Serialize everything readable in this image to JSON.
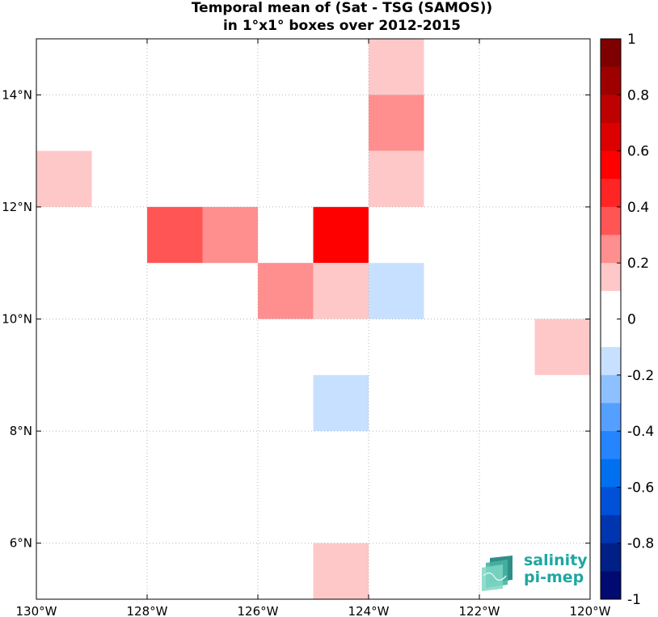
{
  "chart_data": {
    "type": "heatmap",
    "title": "Temporal mean of (Sat - TSG (SAMOS))",
    "subtitle": "in 1°x1° boxes over 2012-2015",
    "x_ticks": [
      {
        "value": -130,
        "label": "130°W"
      },
      {
        "value": -128,
        "label": "128°W"
      },
      {
        "value": -126,
        "label": "126°W"
      },
      {
        "value": -124,
        "label": "124°W"
      },
      {
        "value": -122,
        "label": "122°W"
      },
      {
        "value": -120,
        "label": "120°W"
      }
    ],
    "y_ticks": [
      {
        "value": 6,
        "label": "6°N"
      },
      {
        "value": 8,
        "label": "8°N"
      },
      {
        "value": 10,
        "label": "10°N"
      },
      {
        "value": 12,
        "label": "12°N"
      },
      {
        "value": 14,
        "label": "14°N"
      }
    ],
    "xlim": [
      -130,
      -120
    ],
    "ylim": [
      5,
      15
    ],
    "grid": true,
    "grid_style": "dotted",
    "colorbar": {
      "range": [
        -1,
        1
      ],
      "levels": 20,
      "ticks": [
        {
          "value": 1,
          "label": "1"
        },
        {
          "value": 0.8,
          "label": "0.8"
        },
        {
          "value": 0.6,
          "label": "0.6"
        },
        {
          "value": 0.4,
          "label": "0.4"
        },
        {
          "value": 0.2,
          "label": "0.2"
        },
        {
          "value": 0,
          "label": "0"
        },
        {
          "value": -0.2,
          "label": "-0.2"
        },
        {
          "value": -0.4,
          "label": "-0.4"
        },
        {
          "value": -0.6,
          "label": "-0.6"
        },
        {
          "value": -0.8,
          "label": "-0.8"
        },
        {
          "value": -1,
          "label": "-1"
        }
      ],
      "colors_top_to_bottom": [
        "#7f0000",
        "#9e0000",
        "#bd0000",
        "#dc0000",
        "#ff0000",
        "#ff2525",
        "#ff5555",
        "#ff8e8e",
        "#ffc8c8",
        "#ffffff",
        "#ffffff",
        "#c8e0ff",
        "#8ec0ff",
        "#55a0ff",
        "#2585ff",
        "#0070f0",
        "#0050d8",
        "#0035b0",
        "#002088",
        "#000a70"
      ]
    },
    "cells": [
      {
        "lon": -129.5,
        "lat": 12.5,
        "value": 0.15
      },
      {
        "lon": -127.5,
        "lat": 11.5,
        "value": 0.35
      },
      {
        "lon": -126.5,
        "lat": 11.5,
        "value": 0.25
      },
      {
        "lon": -124.5,
        "lat": 11.5,
        "value": 0.55
      },
      {
        "lon": -125.5,
        "lat": 10.5,
        "value": 0.25
      },
      {
        "lon": -124.5,
        "lat": 10.5,
        "value": 0.15
      },
      {
        "lon": -123.5,
        "lat": 10.5,
        "value": -0.15
      },
      {
        "lon": -123.5,
        "lat": 14.5,
        "value": 0.15
      },
      {
        "lon": -123.5,
        "lat": 13.5,
        "value": 0.25
      },
      {
        "lon": -123.5,
        "lat": 12.5,
        "value": 0.15
      },
      {
        "lon": -120.5,
        "lat": 9.5,
        "value": 0.15
      },
      {
        "lon": -124.5,
        "lat": 8.5,
        "value": -0.15
      },
      {
        "lon": -124.5,
        "lat": 5.5,
        "value": 0.15
      }
    ]
  },
  "logo": {
    "line1": "salinity",
    "line2": "pi-mep",
    "color": "#1fa7a0"
  }
}
